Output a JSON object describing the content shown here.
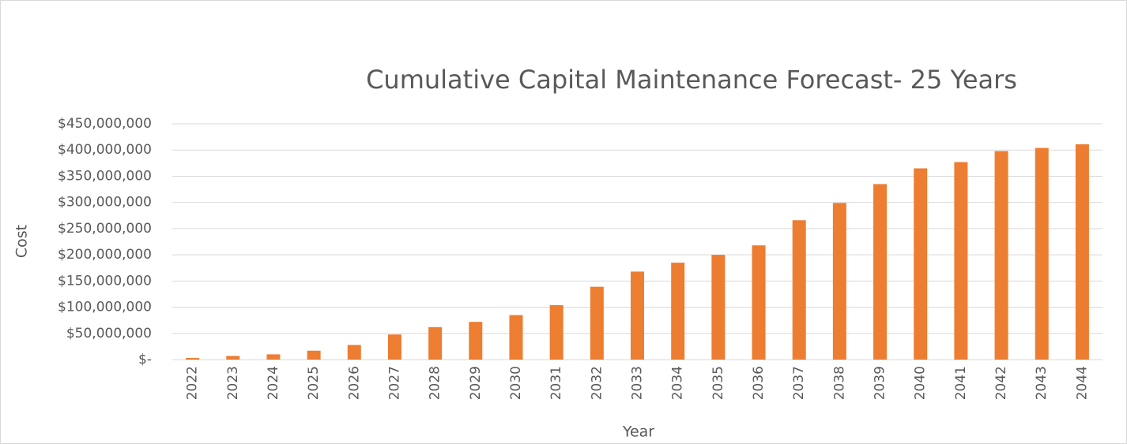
{
  "chart_data": {
    "type": "bar",
    "title": "Cumulative Capital Maintenance Forecast- 25 Years",
    "x_label": "Year",
    "y_label": "Cost",
    "categories": [
      "2022",
      "2023",
      "2024",
      "2025",
      "2026",
      "2027",
      "2028",
      "2029",
      "2030",
      "2031",
      "2032",
      "2033",
      "2034",
      "2035",
      "2036",
      "2037",
      "2038",
      "2039",
      "2040",
      "2041",
      "2042",
      "2043",
      "2044"
    ],
    "values": [
      3000000,
      7000000,
      10000000,
      17000000,
      28000000,
      48000000,
      62000000,
      72000000,
      85000000,
      104000000,
      139000000,
      168000000,
      185000000,
      200000000,
      218000000,
      266000000,
      299000000,
      335000000,
      365000000,
      377000000,
      398000000,
      404000000,
      411000000
    ],
    "color": "#ed7d31",
    "ylim": [
      0,
      450000000
    ],
    "yticks": [
      {
        "value": 0,
        "label": "$-"
      },
      {
        "value": 50000000,
        "label": "$50,000,000"
      },
      {
        "value": 100000000,
        "label": "$100,000,000"
      },
      {
        "value": 150000000,
        "label": "$150,000,000"
      },
      {
        "value": 200000000,
        "label": "$200,000,000"
      },
      {
        "value": 250000000,
        "label": "$250,000,000"
      },
      {
        "value": 300000000,
        "label": "$300,000,000"
      },
      {
        "value": 350000000,
        "label": "$350,000,000"
      },
      {
        "value": 400000000,
        "label": "$400,000,000"
      },
      {
        "value": 450000000,
        "label": "$450,000,000"
      }
    ],
    "grid": true
  }
}
